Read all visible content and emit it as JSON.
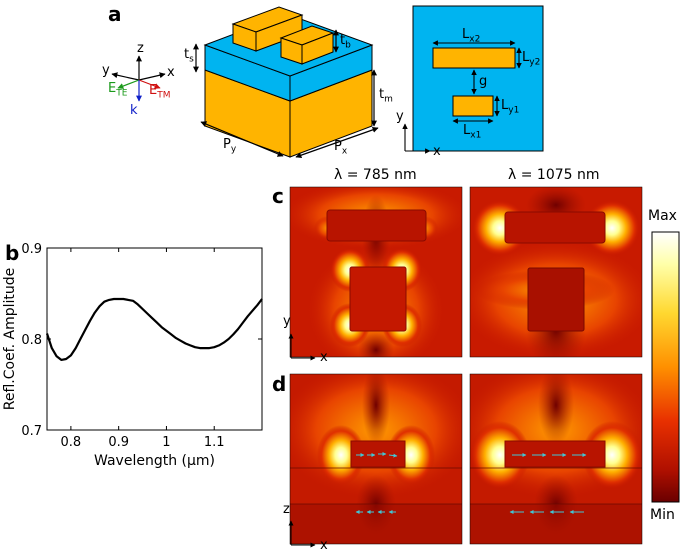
{
  "panels": {
    "a": "a",
    "b": "b",
    "c": "c",
    "d": "d"
  },
  "schematic": {
    "axes": {
      "x": "x",
      "y": "y",
      "z": "z",
      "k": "k",
      "ete_main": "E",
      "ete_sub": "TE",
      "etm_main": "E",
      "etm_sub": "TM"
    },
    "dims": {
      "ts_main": "t",
      "ts_sub": "s",
      "tb_main": "t",
      "tb_sub": "b",
      "tm_main": "t",
      "tm_sub": "m",
      "py_main": "P",
      "py_sub": "y",
      "px_main": "P",
      "px_sub": "x"
    },
    "top_view": {
      "lx2_main": "L",
      "lx2_sub": "x2",
      "ly2_main": "L",
      "ly2_sub": "y2",
      "g": "g",
      "ly1_main": "L",
      "ly1_sub": "y1",
      "lx1_main": "L",
      "lx1_sub": "x1",
      "axis_x": "x",
      "axis_y": "y"
    },
    "colors": {
      "substrate": "#FFB400",
      "spacer": "#00B4F0",
      "resonator": "#FFB400",
      "edge": "#000000"
    }
  },
  "field_maps": {
    "col_titles": [
      "λ = 785 nm",
      "λ = 1075 nm"
    ],
    "row_c_axes": {
      "vertical": "y",
      "horizontal": "x"
    },
    "row_d_axes": {
      "vertical": "z",
      "horizontal": "x"
    },
    "colorbar": {
      "max_label": "Max",
      "min_label": "Min"
    }
  },
  "chart_data": {
    "type": "line",
    "title": "",
    "xlabel": "Wavelength (µm)",
    "ylabel": "Refl.Coef. Amplitude",
    "xlim": [
      0.75,
      1.2
    ],
    "ylim": [
      0.7,
      0.9
    ],
    "xticks": [
      0.8,
      0.9,
      1.0,
      1.1
    ],
    "xtick_labels": [
      "0.8",
      "0.9",
      "1",
      "1.1"
    ],
    "yticks": [
      0.7,
      0.8,
      0.9
    ],
    "ytick_labels": [
      "0.7",
      "0.8",
      "0.9"
    ],
    "grid": false,
    "series": [
      {
        "x": [
          0.75,
          0.76,
          0.77,
          0.78,
          0.79,
          0.8,
          0.81,
          0.82,
          0.83,
          0.84,
          0.85,
          0.86,
          0.87,
          0.88,
          0.89,
          0.9,
          0.91,
          0.92,
          0.93,
          0.94,
          0.95,
          0.96,
          0.97,
          0.98,
          0.99,
          1.0,
          1.01,
          1.02,
          1.03,
          1.04,
          1.05,
          1.06,
          1.07,
          1.08,
          1.09,
          1.1,
          1.11,
          1.12,
          1.13,
          1.14,
          1.15,
          1.16,
          1.17,
          1.18,
          1.19,
          1.2
        ],
        "y": [
          0.806,
          0.79,
          0.781,
          0.777,
          0.778,
          0.782,
          0.79,
          0.8,
          0.81,
          0.82,
          0.829,
          0.836,
          0.841,
          0.843,
          0.844,
          0.844,
          0.844,
          0.843,
          0.842,
          0.838,
          0.833,
          0.828,
          0.823,
          0.818,
          0.813,
          0.809,
          0.805,
          0.801,
          0.798,
          0.795,
          0.793,
          0.791,
          0.79,
          0.79,
          0.79,
          0.791,
          0.793,
          0.796,
          0.8,
          0.805,
          0.811,
          0.818,
          0.825,
          0.831,
          0.837,
          0.844
        ]
      }
    ]
  }
}
